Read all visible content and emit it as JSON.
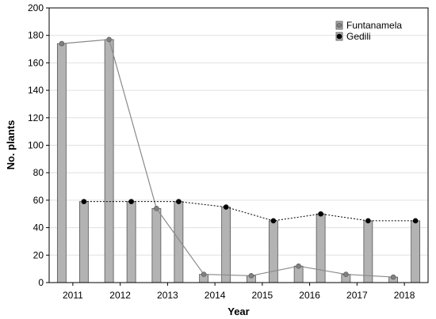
{
  "chart_data": {
    "type": "bar",
    "categories": [
      "2011",
      "2012",
      "2013",
      "2014",
      "2015",
      "2016",
      "2017",
      "2018"
    ],
    "series": [
      {
        "name": "Funtanamela",
        "values": [
          174,
          177,
          54,
          6,
          5,
          12,
          6,
          4
        ],
        "bar_color": "#b3b3b3",
        "line_color": "#8a8a8a",
        "marker_color": "#808080",
        "line_style": "solid"
      },
      {
        "name": "Gedili",
        "values": [
          59,
          59,
          59,
          55,
          45,
          50,
          45,
          45
        ],
        "bar_color": "#b3b3b3",
        "line_color": "#000000",
        "marker_color": "#000000",
        "line_style": "dotted"
      }
    ],
    "title": "",
    "xlabel": "Year",
    "ylabel": "No. plants",
    "ylim": [
      0,
      200
    ],
    "yticks": [
      "0",
      "20",
      "40",
      "60",
      "80",
      "100",
      "120",
      "140",
      "160",
      "180",
      "200"
    ],
    "grid": "horizontal",
    "legend_position": "top-right"
  }
}
